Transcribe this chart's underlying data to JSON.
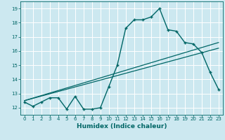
{
  "xlabel": "Humidex (Indice chaleur)",
  "bg_color": "#cce8f0",
  "grid_color": "#ffffff",
  "line_color": "#006666",
  "xlim": [
    -0.5,
    23.5
  ],
  "ylim": [
    11.5,
    19.5
  ],
  "xticks": [
    0,
    1,
    2,
    3,
    4,
    5,
    6,
    7,
    8,
    9,
    10,
    11,
    12,
    13,
    14,
    15,
    16,
    17,
    18,
    19,
    20,
    21,
    22,
    23
  ],
  "yticks": [
    12,
    13,
    14,
    15,
    16,
    17,
    18,
    19
  ],
  "main_x": [
    0,
    1,
    2,
    3,
    4,
    5,
    6,
    7,
    8,
    9,
    10,
    11,
    12,
    13,
    14,
    15,
    16,
    17,
    18,
    19,
    20,
    21,
    22,
    23
  ],
  "main_y": [
    12.4,
    12.1,
    12.4,
    12.7,
    12.7,
    11.9,
    12.8,
    11.9,
    11.9,
    12.0,
    13.5,
    15.0,
    17.6,
    18.2,
    18.2,
    18.4,
    19.0,
    17.5,
    17.4,
    16.6,
    16.5,
    15.9,
    14.5,
    13.3
  ],
  "trend1_x": [
    0,
    23
  ],
  "trend1_y": [
    12.5,
    16.6
  ],
  "trend2_x": [
    0,
    23
  ],
  "trend2_y": [
    12.5,
    16.2
  ]
}
